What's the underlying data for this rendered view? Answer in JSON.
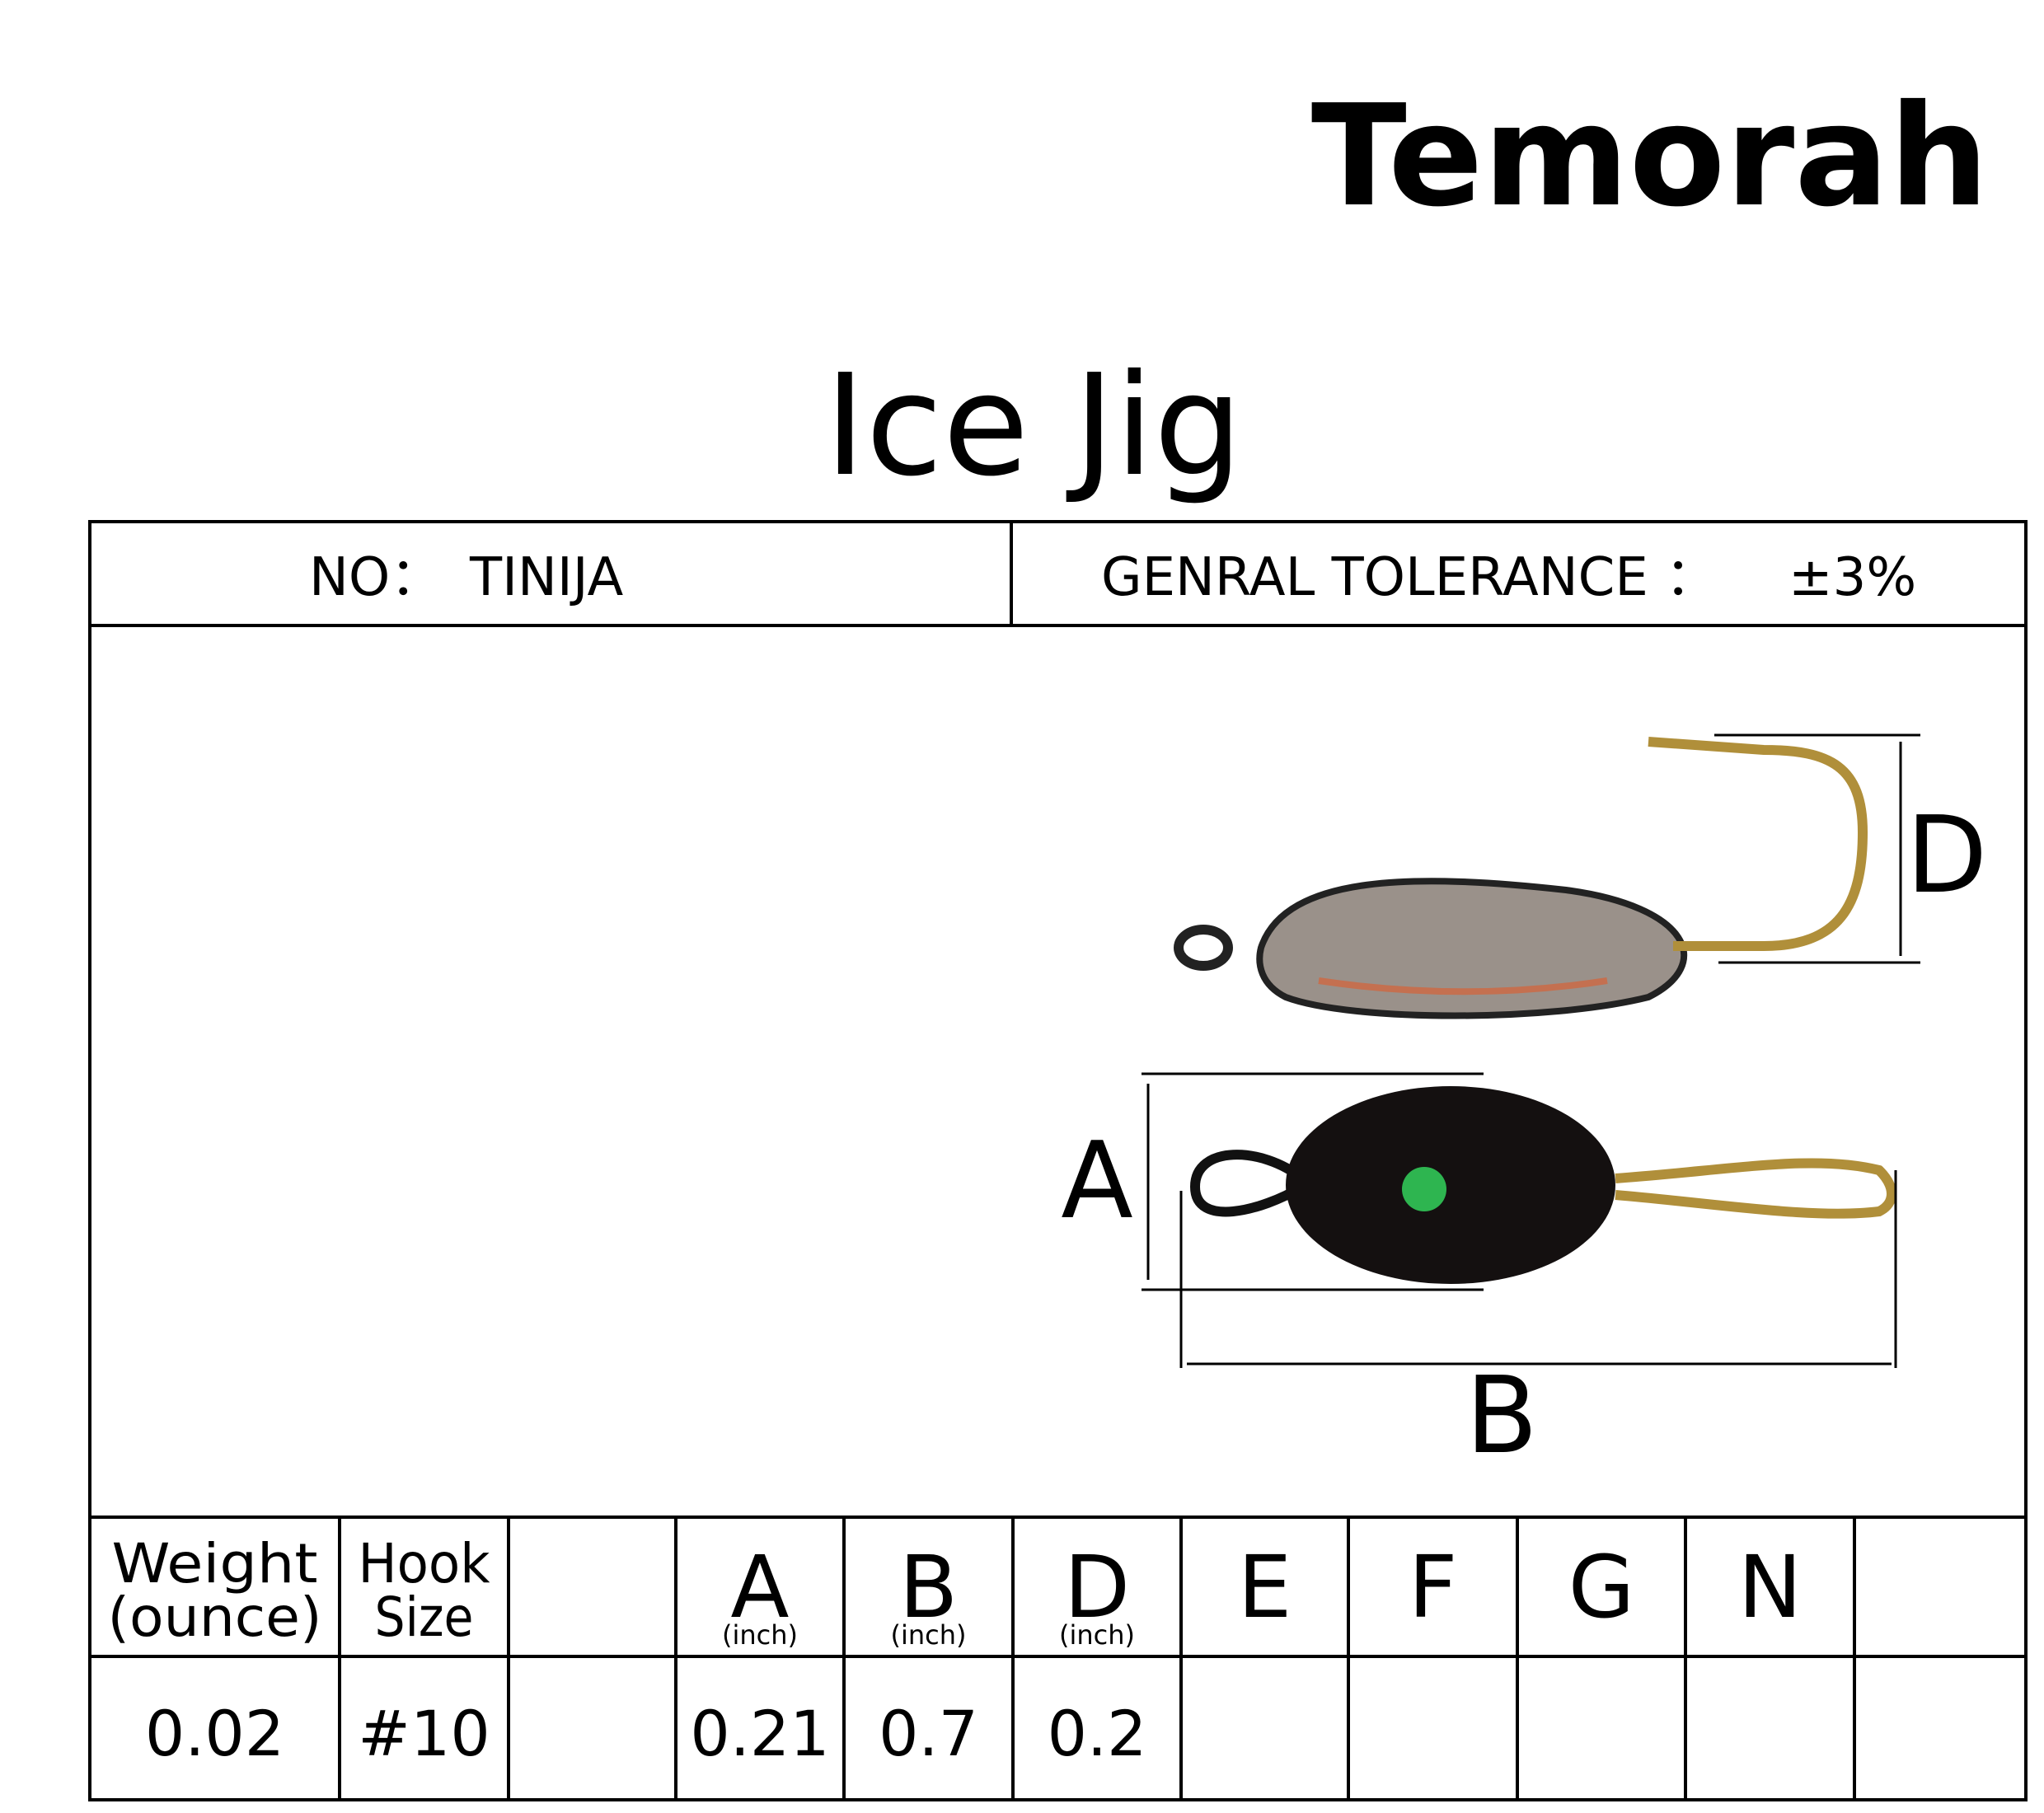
{
  "brand": "Temorah",
  "title": "Ice Jig",
  "spec": {
    "no_label": "NO：",
    "no_value": "TINIJA",
    "tolerance_label": "GENRAL TOLERANCE ：",
    "tolerance_value": "±3%"
  },
  "diagram": {
    "labels": [
      "A",
      "B",
      "D"
    ]
  },
  "table": {
    "headers": [
      [
        "Weight",
        "(ounce)"
      ],
      [
        "Hook",
        "Size"
      ],
      [
        "A",
        "(inch)"
      ],
      [
        "B",
        "(inch)"
      ],
      [
        "D",
        "(inch)"
      ],
      [
        "E"
      ],
      [
        "F"
      ],
      [
        "G"
      ],
      [
        "N"
      ]
    ],
    "rows": [
      [
        "0.02",
        "#10",
        "0.21",
        "0.7",
        "0.2"
      ]
    ]
  }
}
